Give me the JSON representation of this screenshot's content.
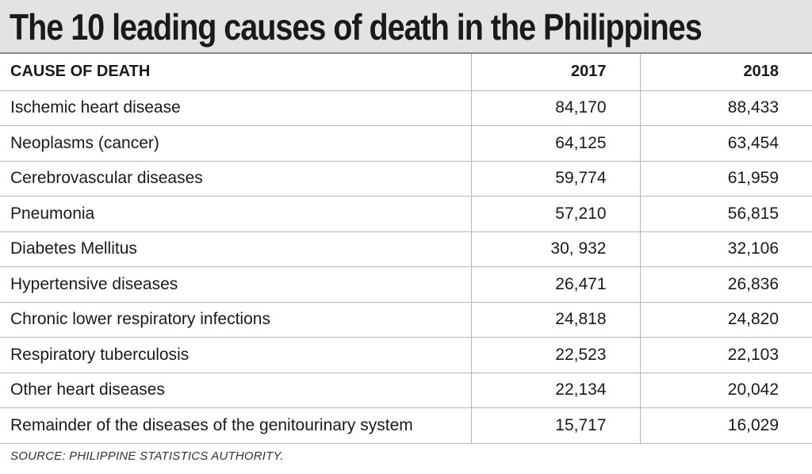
{
  "title": "The 10 leading causes of death in the Philippines",
  "table": {
    "headers": {
      "cause": "CAUSE OF DEATH",
      "y2017": "2017",
      "y2018": "2018"
    },
    "rows": [
      {
        "cause": "Ischemic heart disease",
        "y2017": "84,170",
        "y2018": "88,433"
      },
      {
        "cause": "Neoplasms (cancer)",
        "y2017": "64,125",
        "y2018": "63,454"
      },
      {
        "cause": "Cerebrovascular diseases",
        "y2017": "59,774",
        "y2018": "61,959"
      },
      {
        "cause": "Pneumonia",
        "y2017": "57,210",
        "y2018": "56,815"
      },
      {
        "cause": "Diabetes Mellitus",
        "y2017": "30, 932",
        "y2018": "32,106"
      },
      {
        "cause": "Hypertensive diseases",
        "y2017": "26,471",
        "y2018": "26,836"
      },
      {
        "cause": "Chronic lower respiratory infections",
        "y2017": "24,818",
        "y2018": "24,820"
      },
      {
        "cause": "Respiratory tuberculosis",
        "y2017": "22,523",
        "y2018": "22,103"
      },
      {
        "cause": "Other heart diseases",
        "y2017": "22,134",
        "y2018": "20,042"
      },
      {
        "cause": "Remainder of the diseases of the genitourinary system",
        "y2017": "15,717",
        "y2018": "16,029"
      }
    ]
  },
  "source": "SOURCE: PHILIPPINE STATISTICS AUTHORITY.",
  "colors": {
    "title_background": "#e3e3e3",
    "text": "#1a1a1a",
    "rule": "#b5b5b5"
  }
}
